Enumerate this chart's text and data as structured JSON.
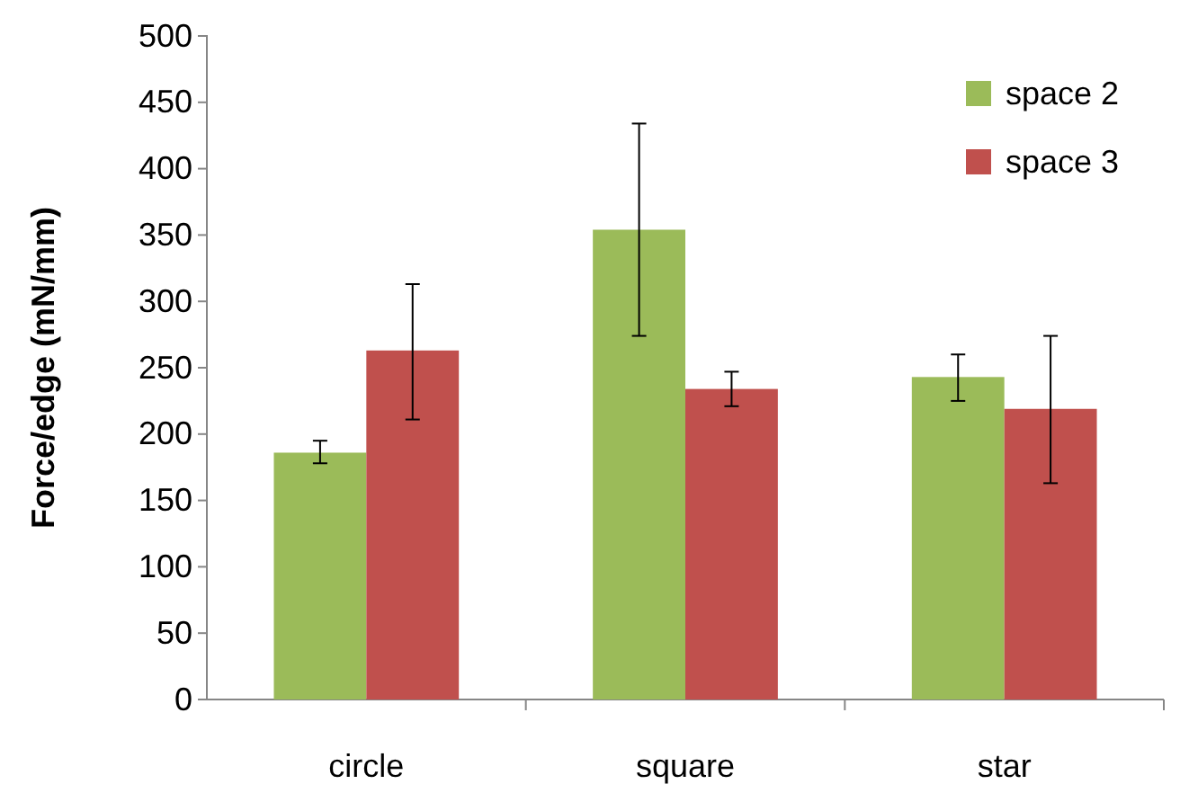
{
  "chart_data": {
    "type": "bar",
    "ylabel": "Force/edge (mN/mm)",
    "categories": [
      "circle",
      "square",
      "star"
    ],
    "series": [
      {
        "name": "space 2",
        "color": "#9bbb59",
        "values": [
          186,
          354,
          243
        ],
        "errors": [
          [
            178,
            195
          ],
          [
            274,
            434
          ],
          [
            225,
            260
          ]
        ]
      },
      {
        "name": "space 3",
        "color": "#c0504d",
        "values": [
          263,
          234,
          219
        ],
        "errors": [
          [
            211,
            313
          ],
          [
            221,
            247
          ],
          [
            163,
            274
          ]
        ]
      }
    ],
    "ylim": [
      0,
      500
    ],
    "yticks": [
      0,
      50,
      100,
      150,
      200,
      250,
      300,
      350,
      400,
      450,
      500
    ],
    "grid": false,
    "legend": "top right"
  }
}
